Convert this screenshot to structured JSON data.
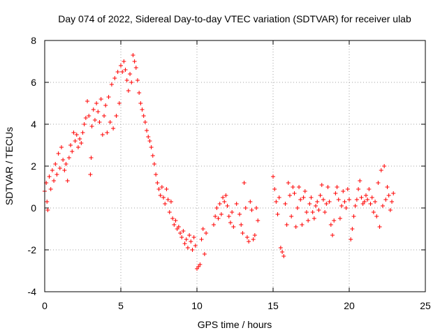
{
  "chart_data": {
    "type": "scatter",
    "title": "Day 074 of 2022, Sidereal Day-to-day VTEC variation (SDTVAR) for receiver ulab",
    "xlabel": "GPS time / hours",
    "ylabel": "SDTVAR / TECUs",
    "xlim": [
      0,
      25
    ],
    "ylim": [
      -4,
      8
    ],
    "x_ticks": [
      "0",
      "5",
      "10",
      "15",
      "20",
      "25"
    ],
    "y_ticks": [
      "-4",
      "-2",
      "0",
      "2",
      "4",
      "6",
      "8"
    ],
    "grid": true,
    "marker": "+",
    "color": "#ff0000",
    "series": [
      {
        "name": "SDTVAR",
        "points": [
          [
            0.0,
            0.8
          ],
          [
            0.1,
            1.2
          ],
          [
            0.15,
            0.3
          ],
          [
            0.2,
            -0.1
          ],
          [
            0.3,
            1.5
          ],
          [
            0.4,
            0.9
          ],
          [
            0.5,
            1.8
          ],
          [
            0.6,
            1.3
          ],
          [
            0.7,
            2.1
          ],
          [
            0.8,
            1.6
          ],
          [
            0.9,
            2.6
          ],
          [
            1.0,
            1.9
          ],
          [
            1.1,
            2.9
          ],
          [
            1.2,
            2.3
          ],
          [
            1.3,
            1.8
          ],
          [
            1.4,
            2.1
          ],
          [
            1.5,
            1.3
          ],
          [
            1.6,
            2.4
          ],
          [
            1.7,
            3.0
          ],
          [
            1.8,
            2.7
          ],
          [
            1.9,
            3.6
          ],
          [
            2.0,
            3.2
          ],
          [
            2.1,
            3.5
          ],
          [
            2.2,
            2.9
          ],
          [
            2.3,
            3.3
          ],
          [
            2.4,
            3.1
          ],
          [
            2.5,
            3.6
          ],
          [
            2.6,
            4.0
          ],
          [
            2.7,
            4.3
          ],
          [
            2.8,
            5.1
          ],
          [
            2.9,
            4.4
          ],
          [
            3.0,
            1.6
          ],
          [
            3.05,
            2.4
          ],
          [
            3.1,
            3.9
          ],
          [
            3.2,
            4.7
          ],
          [
            3.3,
            4.2
          ],
          [
            3.4,
            5.0
          ],
          [
            3.5,
            4.6
          ],
          [
            3.6,
            4.1
          ],
          [
            3.7,
            5.2
          ],
          [
            3.8,
            3.5
          ],
          [
            3.9,
            4.4
          ],
          [
            4.0,
            4.9
          ],
          [
            4.1,
            3.6
          ],
          [
            4.2,
            5.3
          ],
          [
            4.3,
            4.1
          ],
          [
            4.4,
            5.9
          ],
          [
            4.5,
            3.8
          ],
          [
            4.6,
            6.2
          ],
          [
            4.7,
            4.4
          ],
          [
            4.8,
            6.5
          ],
          [
            4.9,
            5.0
          ],
          [
            5.0,
            6.8
          ],
          [
            5.1,
            6.5
          ],
          [
            5.2,
            7.0
          ],
          [
            5.3,
            6.6
          ],
          [
            5.4,
            6.1
          ],
          [
            5.5,
            5.6
          ],
          [
            5.6,
            6.4
          ],
          [
            5.7,
            6.0
          ],
          [
            5.8,
            7.3
          ],
          [
            5.9,
            7.0
          ],
          [
            6.0,
            6.7
          ],
          [
            6.1,
            6.1
          ],
          [
            6.2,
            5.5
          ],
          [
            6.3,
            5.0
          ],
          [
            6.4,
            4.7
          ],
          [
            6.5,
            4.4
          ],
          [
            6.6,
            4.1
          ],
          [
            6.7,
            3.7
          ],
          [
            6.8,
            3.4
          ],
          [
            6.9,
            3.2
          ],
          [
            7.0,
            2.9
          ],
          [
            7.1,
            2.5
          ],
          [
            7.2,
            2.1
          ],
          [
            7.3,
            1.6
          ],
          [
            7.4,
            1.2
          ],
          [
            7.5,
            0.9
          ],
          [
            7.6,
            0.6
          ],
          [
            7.7,
            1.0
          ],
          [
            7.8,
            0.5
          ],
          [
            7.9,
            0.2
          ],
          [
            8.0,
            0.9
          ],
          [
            8.1,
            0.4
          ],
          [
            8.2,
            -0.2
          ],
          [
            8.3,
            0.3
          ],
          [
            8.4,
            -0.5
          ],
          [
            8.5,
            -0.8
          ],
          [
            8.6,
            -0.6
          ],
          [
            8.7,
            -1.0
          ],
          [
            8.8,
            -0.9
          ],
          [
            8.9,
            -1.2
          ],
          [
            9.0,
            -1.4
          ],
          [
            9.1,
            -1.1
          ],
          [
            9.2,
            -1.7
          ],
          [
            9.3,
            -1.5
          ],
          [
            9.4,
            -1.9
          ],
          [
            9.5,
            -1.3
          ],
          [
            9.6,
            -1.6
          ],
          [
            9.7,
            -2.0
          ],
          [
            9.8,
            -1.4
          ],
          [
            9.9,
            -1.8
          ],
          [
            10.0,
            -2.9
          ],
          [
            10.1,
            -2.8
          ],
          [
            10.2,
            -2.7
          ],
          [
            10.3,
            -1.5
          ],
          [
            10.4,
            -1.0
          ],
          [
            10.5,
            -2.2
          ],
          [
            10.6,
            -1.2
          ],
          [
            11.1,
            -0.8
          ],
          [
            11.2,
            -0.4
          ],
          [
            11.3,
            0.0
          ],
          [
            11.4,
            -0.5
          ],
          [
            11.5,
            0.2
          ],
          [
            11.6,
            -0.3
          ],
          [
            11.7,
            0.5
          ],
          [
            11.8,
            0.3
          ],
          [
            11.9,
            0.6
          ],
          [
            12.0,
            0.1
          ],
          [
            12.1,
            -0.4
          ],
          [
            12.2,
            -0.7
          ],
          [
            12.3,
            -0.2
          ],
          [
            12.4,
            -0.9
          ],
          [
            12.6,
            0.2
          ],
          [
            12.8,
            -0.3
          ],
          [
            12.9,
            -0.8
          ],
          [
            13.0,
            -1.2
          ],
          [
            13.1,
            1.2
          ],
          [
            13.2,
            0.0
          ],
          [
            13.3,
            -1.4
          ],
          [
            13.4,
            -1.6
          ],
          [
            13.5,
            0.3
          ],
          [
            13.6,
            -0.1
          ],
          [
            13.7,
            -1.5
          ],
          [
            13.8,
            -1.3
          ],
          [
            13.9,
            0.0
          ],
          [
            14.0,
            -0.6
          ],
          [
            15.0,
            1.5
          ],
          [
            15.1,
            0.9
          ],
          [
            15.2,
            0.3
          ],
          [
            15.3,
            -0.3
          ],
          [
            15.4,
            0.5
          ],
          [
            15.5,
            -1.9
          ],
          [
            15.6,
            -2.1
          ],
          [
            15.7,
            -2.3
          ],
          [
            15.8,
            0.2
          ],
          [
            15.9,
            -0.8
          ],
          [
            16.0,
            1.2
          ],
          [
            16.1,
            0.6
          ],
          [
            16.2,
            -0.4
          ],
          [
            16.3,
            1.0
          ],
          [
            16.4,
            0.7
          ],
          [
            16.5,
            -0.9
          ],
          [
            16.6,
            0.0
          ],
          [
            16.7,
            1.0
          ],
          [
            16.8,
            0.4
          ],
          [
            16.9,
            -0.8
          ],
          [
            17.0,
            0.5
          ],
          [
            17.1,
            0.8
          ],
          [
            17.2,
            -0.2
          ],
          [
            17.3,
            -0.6
          ],
          [
            17.4,
            0.2
          ],
          [
            17.5,
            0.5
          ],
          [
            17.6,
            -0.2
          ],
          [
            17.7,
            -0.5
          ],
          [
            17.8,
            0.1
          ],
          [
            17.9,
            0.3
          ],
          [
            18.0,
            -0.1
          ],
          [
            18.1,
            0.6
          ],
          [
            18.2,
            1.1
          ],
          [
            18.3,
            0.4
          ],
          [
            18.4,
            -0.2
          ],
          [
            18.5,
            0.2
          ],
          [
            18.6,
            1.0
          ],
          [
            18.7,
            0.3
          ],
          [
            18.8,
            -0.8
          ],
          [
            18.9,
            -1.3
          ],
          [
            19.0,
            -0.6
          ],
          [
            19.1,
            0.7
          ],
          [
            19.2,
            1.0
          ],
          [
            19.3,
            0.4
          ],
          [
            19.4,
            -0.5
          ],
          [
            19.5,
            0.1
          ],
          [
            19.6,
            0.8
          ],
          [
            19.7,
            0.3
          ],
          [
            19.8,
            0.0
          ],
          [
            19.9,
            0.9
          ],
          [
            20.0,
            0.4
          ],
          [
            20.1,
            -1.5
          ],
          [
            20.2,
            -1.0
          ],
          [
            20.3,
            -0.4
          ],
          [
            20.4,
            0.1
          ],
          [
            20.5,
            0.4
          ],
          [
            20.6,
            0.9
          ],
          [
            20.7,
            1.3
          ],
          [
            20.8,
            0.5
          ],
          [
            20.9,
            0.2
          ],
          [
            21.0,
            0.3
          ],
          [
            21.1,
            0.6
          ],
          [
            21.2,
            0.4
          ],
          [
            21.3,
            0.9
          ],
          [
            21.4,
            0.2
          ],
          [
            21.5,
            0.5
          ],
          [
            21.6,
            -0.2
          ],
          [
            21.7,
            0.3
          ],
          [
            21.8,
            -0.4
          ],
          [
            21.9,
            1.2
          ],
          [
            22.0,
            -0.9
          ],
          [
            22.1,
            1.8
          ],
          [
            22.2,
            0.1
          ],
          [
            22.3,
            2.0
          ],
          [
            22.4,
            0.4
          ],
          [
            22.5,
            1.0
          ],
          [
            22.6,
            0.6
          ],
          [
            22.7,
            -0.1
          ],
          [
            22.8,
            0.3
          ],
          [
            22.9,
            0.7
          ]
        ]
      }
    ]
  }
}
